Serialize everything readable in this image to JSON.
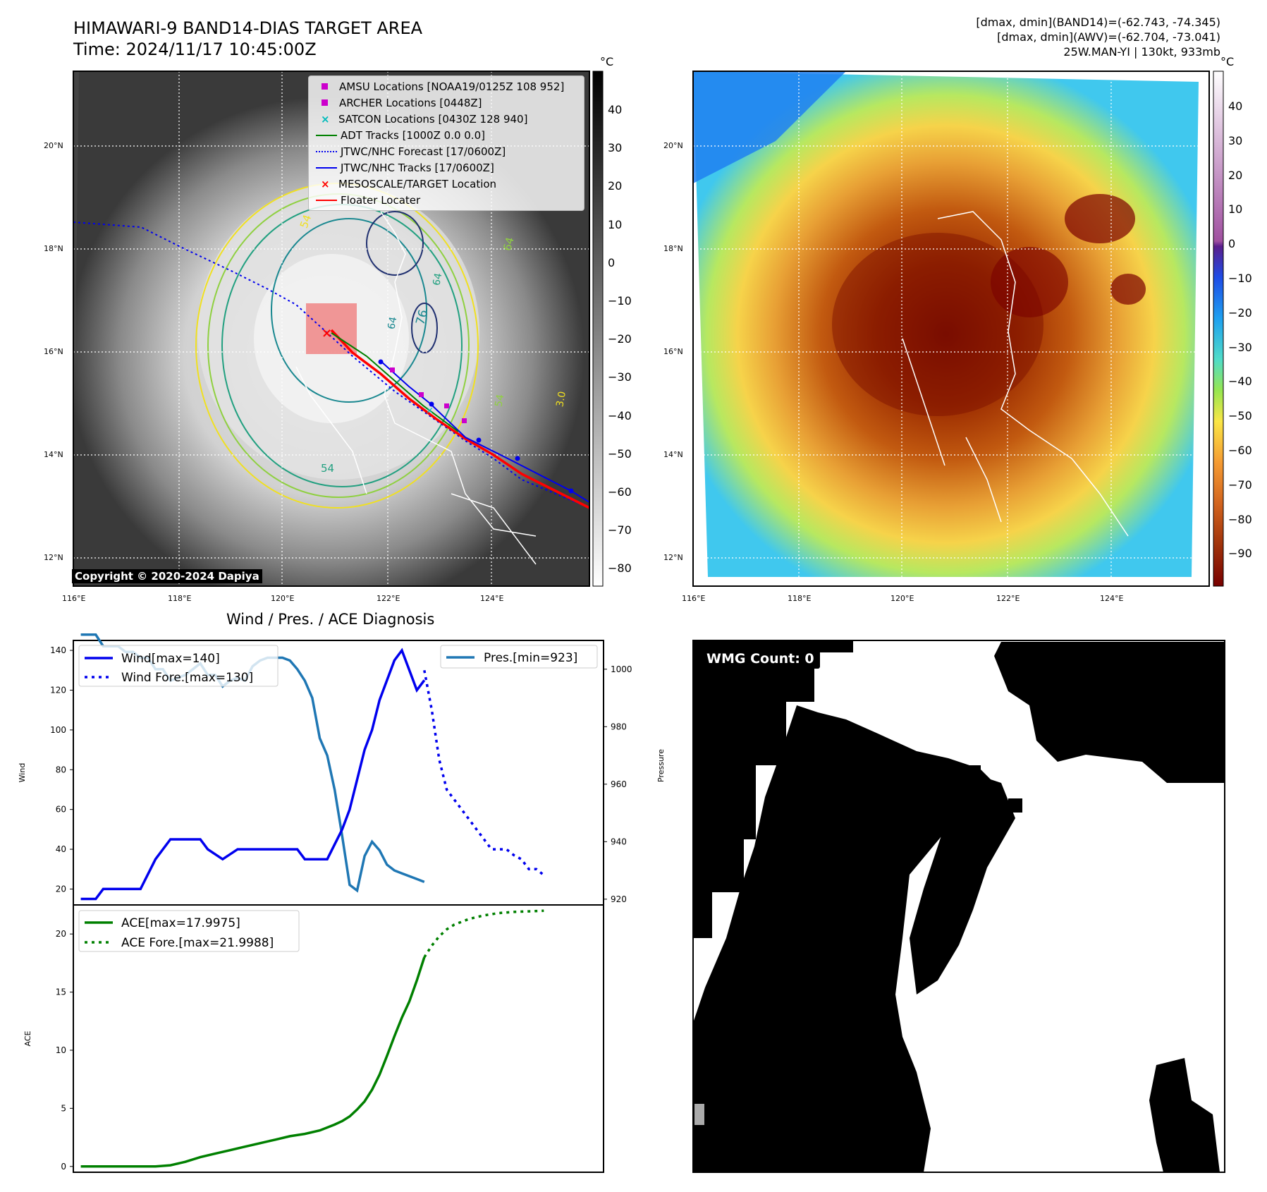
{
  "header": {
    "title_line1": "HIMAWARI-9 BAND14-DIAS TARGET AREA",
    "title_line2": "Time: 2024/11/17 10:45:00Z",
    "info_line1": "[dmax, dmin](BAND14)=(-62.743, -74.345)",
    "info_line2": "[dmax, dmin](AWV)=(-62.704, -73.041)",
    "info_line3": "25W.MAN-YI | 130kt, 933mb"
  },
  "colors": {
    "wind": "#0000ee",
    "pressure": "#1f77b4",
    "ace": "#008000",
    "floater": "#ff0000",
    "amsu": "#cc00cc",
    "satcon": "#00bbbb",
    "adt": "#008000",
    "target_box": "#f08080"
  },
  "map": {
    "lon_ticks": [
      "116°E",
      "118°E",
      "120°E",
      "122°E",
      "124°E"
    ],
    "lat_ticks": [
      "20°N",
      "18°N",
      "16°N",
      "14°N",
      "12°N"
    ],
    "copyright": "Copyright © 2020-2024 Dapiya",
    "contour_labels": [
      "54",
      "64",
      "76",
      "64",
      "54",
      "64",
      "54",
      "3.0"
    ],
    "legend": [
      {
        "label": "AMSU Locations [NOAA19/0125Z 108 952]"
      },
      {
        "label": "ARCHER Locations [0448Z]"
      },
      {
        "label": "SATCON Locations [0430Z 128 940]"
      },
      {
        "label": "ADT Tracks [1000Z 0.0 0.0]"
      },
      {
        "label": "JTWC/NHC Forecast [17/0600Z]"
      },
      {
        "label": "JTWC/NHC Tracks [17/0600Z]"
      },
      {
        "label": "MESOSCALE/TARGET Location"
      },
      {
        "label": "Floater Locater"
      }
    ]
  },
  "colorbar_gray": {
    "unit": "°C",
    "ticks": [
      "40",
      "30",
      "20",
      "10",
      "0",
      "−10",
      "−20",
      "−30",
      "−40",
      "−50",
      "−60",
      "−70",
      "−80"
    ]
  },
  "colorbar_color": {
    "unit": "°C",
    "ticks": [
      "40",
      "30",
      "20",
      "10",
      "0",
      "−10",
      "−20",
      "−30",
      "−40",
      "−50",
      "−60",
      "−70",
      "−80",
      "−90"
    ]
  },
  "wmg": {
    "label": "WMG Count: 0"
  },
  "chart_data": [
    {
      "type": "line",
      "title": "Wind / Pres. / ACE Diagnosis",
      "ylabel": "Wind",
      "ylabel_right": "Pressure",
      "ylim": [
        12,
        145
      ],
      "ylim_right": [
        918,
        1010
      ],
      "xlim": [
        -1,
        70
      ],
      "yticks": [
        20,
        40,
        60,
        80,
        100,
        120,
        140
      ],
      "yticks_right": [
        920,
        940,
        960,
        980,
        1000
      ],
      "legend_left": [
        "Wind[max=140]",
        "Wind Fore.[max=130]"
      ],
      "legend_right": [
        "Pres.[min=923]"
      ],
      "series": [
        {
          "name": "Wind",
          "style": "solid",
          "x": [
            0,
            2,
            3,
            5,
            7,
            8,
            10,
            12,
            13,
            14,
            16,
            17,
            19,
            21,
            23,
            25,
            26,
            27,
            28,
            29,
            30,
            31,
            33,
            35,
            36,
            37,
            38,
            39,
            40,
            42,
            43,
            44,
            45,
            46
          ],
          "values": [
            15,
            15,
            20,
            20,
            20,
            20,
            35,
            45,
            45,
            45,
            45,
            40,
            35,
            40,
            40,
            40,
            40,
            40,
            40,
            40,
            35,
            35,
            35,
            50,
            60,
            75,
            90,
            100,
            115,
            135,
            140,
            130,
            120,
            125
          ]
        },
        {
          "name": "Wind Fore.",
          "style": "dotted",
          "x": [
            46,
            47,
            48,
            49,
            50,
            51,
            52,
            53,
            54,
            55,
            56,
            57,
            58,
            59,
            60,
            61,
            62
          ],
          "values": [
            130,
            110,
            85,
            70,
            65,
            60,
            55,
            50,
            45,
            40,
            40,
            40,
            37,
            35,
            30,
            30,
            27
          ]
        },
        {
          "name": "Pres.",
          "style": "solid",
          "x": [
            0,
            2,
            3,
            4,
            5,
            6,
            7,
            8,
            9,
            10,
            11,
            12,
            13,
            14,
            15,
            16,
            17,
            18,
            19,
            20,
            21,
            22,
            23,
            24,
            25,
            26,
            27,
            28,
            29,
            30,
            31,
            32,
            33,
            34,
            35,
            36,
            37,
            38,
            39,
            40,
            41,
            42,
            43,
            44,
            45,
            46
          ],
          "values": [
            1012,
            1012,
            1008,
            1008,
            1008,
            1006,
            1006,
            1004,
            1004,
            1000,
            1000,
            996,
            997,
            998,
            1000,
            1002,
            998,
            998,
            994,
            996,
            997,
            996,
            1001,
            1003,
            1004,
            1004,
            1004,
            1003,
            1000,
            996,
            990,
            976,
            970,
            958,
            942,
            925,
            923,
            935,
            940,
            937,
            932,
            930,
            929,
            928,
            927,
            926
          ]
        }
      ]
    },
    {
      "type": "line",
      "ylabel": "ACE",
      "ylim": [
        -0.5,
        22.5
      ],
      "xlim": [
        -1,
        70
      ],
      "yticks": [
        0,
        5,
        10,
        15,
        20
      ],
      "legend": [
        "ACE[max=17.9975]",
        "ACE Fore.[max=21.9988]"
      ],
      "series": [
        {
          "name": "ACE",
          "style": "solid",
          "x": [
            0,
            2,
            4,
            6,
            8,
            10,
            12,
            14,
            16,
            18,
            20,
            22,
            24,
            26,
            28,
            30,
            32,
            34,
            35,
            36,
            37,
            38,
            39,
            40,
            41,
            42,
            43,
            44,
            45,
            46
          ],
          "values": [
            0,
            0,
            0,
            0,
            0,
            0,
            0.1,
            0.4,
            0.8,
            1.1,
            1.4,
            1.7,
            2.0,
            2.3,
            2.6,
            2.8,
            3.1,
            3.6,
            3.9,
            4.3,
            4.9,
            5.6,
            6.6,
            7.9,
            9.5,
            11.2,
            12.8,
            14.2,
            16.0,
            17.9975
          ]
        },
        {
          "name": "ACE Fore.",
          "style": "dotted",
          "x": [
            46,
            47,
            48,
            49,
            50,
            52,
            54,
            56,
            58,
            60,
            62
          ],
          "values": [
            17.9975,
            19.0,
            19.8,
            20.4,
            20.8,
            21.3,
            21.6,
            21.8,
            21.9,
            21.95,
            21.9988
          ]
        }
      ]
    }
  ]
}
